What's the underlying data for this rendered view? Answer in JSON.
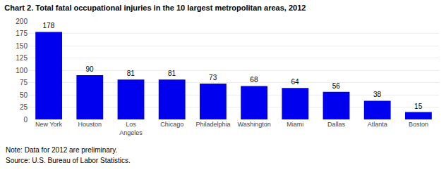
{
  "chart_data": {
    "type": "bar",
    "title": "Chart 2. Total fatal occupational injuries in the 10 largest metropolitan areas, 2012",
    "categories": [
      "New York",
      "Houston",
      "Los\nAngeles",
      "Chicago",
      "Philadelphia",
      "Washington",
      "Miami",
      "Dallas",
      "Atlanta",
      "Boston"
    ],
    "values": [
      178,
      90,
      81,
      81,
      73,
      68,
      64,
      56,
      38,
      15
    ],
    "color": "#0000ee",
    "ylim": [
      0,
      200
    ],
    "yticks": [
      0,
      25,
      50,
      75,
      100,
      125,
      150,
      175,
      200
    ],
    "grid": true,
    "data_labels": true,
    "annotations": [
      "Note: Data for 2012 are preliminary.",
      "Source: U.S. Bureau of Labor Statistics."
    ]
  }
}
